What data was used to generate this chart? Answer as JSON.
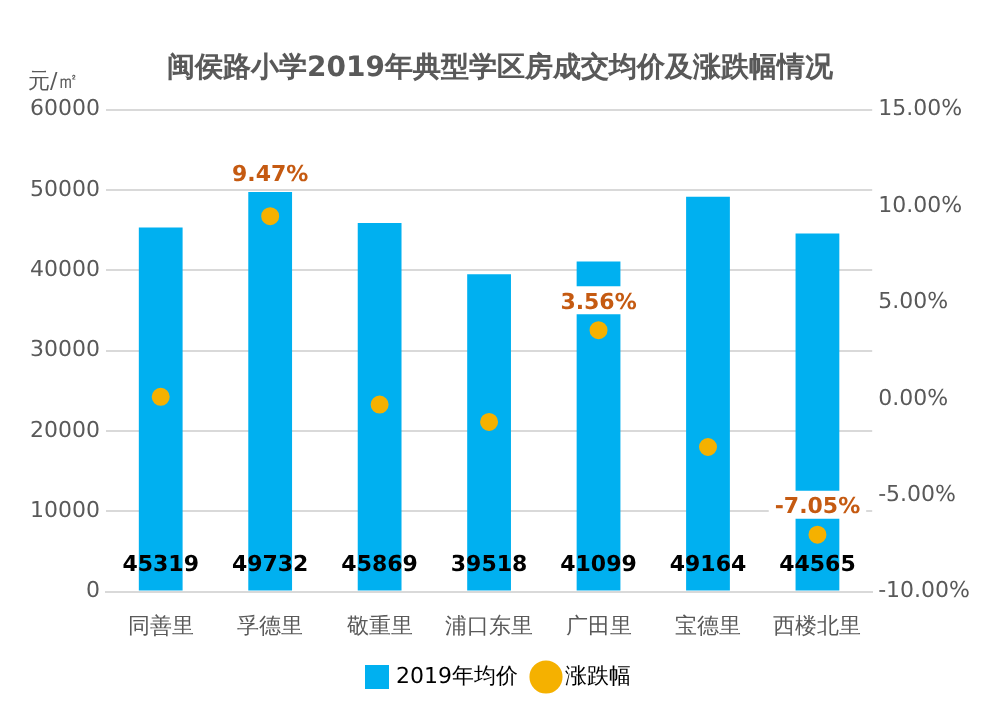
{
  "chart_data": {
    "type": "bar",
    "title": "闽侯路小学2019年典型学区房成交均价及涨跌幅情况",
    "ylabel": "元/㎡",
    "categories": [
      "同善里",
      "孚德里",
      "敬重里",
      "浦口东里",
      "广田里",
      "宝德里",
      "西楼北里"
    ],
    "series": [
      {
        "name": "2019年均价",
        "color": "#00b0f0",
        "values": [
          45319,
          49732,
          45869,
          39518,
          41099,
          49164,
          44565
        ],
        "data_labels": true
      },
      {
        "name": "涨跌幅",
        "type": "scatter",
        "axis": "y2",
        "color": "#f5b100",
        "marker": "circle",
        "values": [
          0.1,
          9.47,
          -0.3,
          -1.2,
          3.56,
          -2.5,
          -7.05
        ],
        "value_labels": [
          null,
          "9.47%",
          null,
          null,
          "3.56%",
          null,
          "-7.05%"
        ]
      }
    ],
    "ylim": [
      0,
      60000
    ],
    "yticks": [
      0,
      10000,
      20000,
      30000,
      40000,
      50000,
      60000
    ],
    "y2lim": [
      -10,
      15
    ],
    "y2ticks": [
      {
        "value": -10,
        "label": "-10.00%"
      },
      {
        "value": -5,
        "label": "-5.00%"
      },
      {
        "value": 0,
        "label": "0.00%"
      },
      {
        "value": 5,
        "label": "5.00%"
      },
      {
        "value": 10,
        "label": "10.00%"
      },
      {
        "value": 15,
        "label": "15.00%"
      }
    ],
    "grid": "y",
    "legend": "bottom"
  }
}
